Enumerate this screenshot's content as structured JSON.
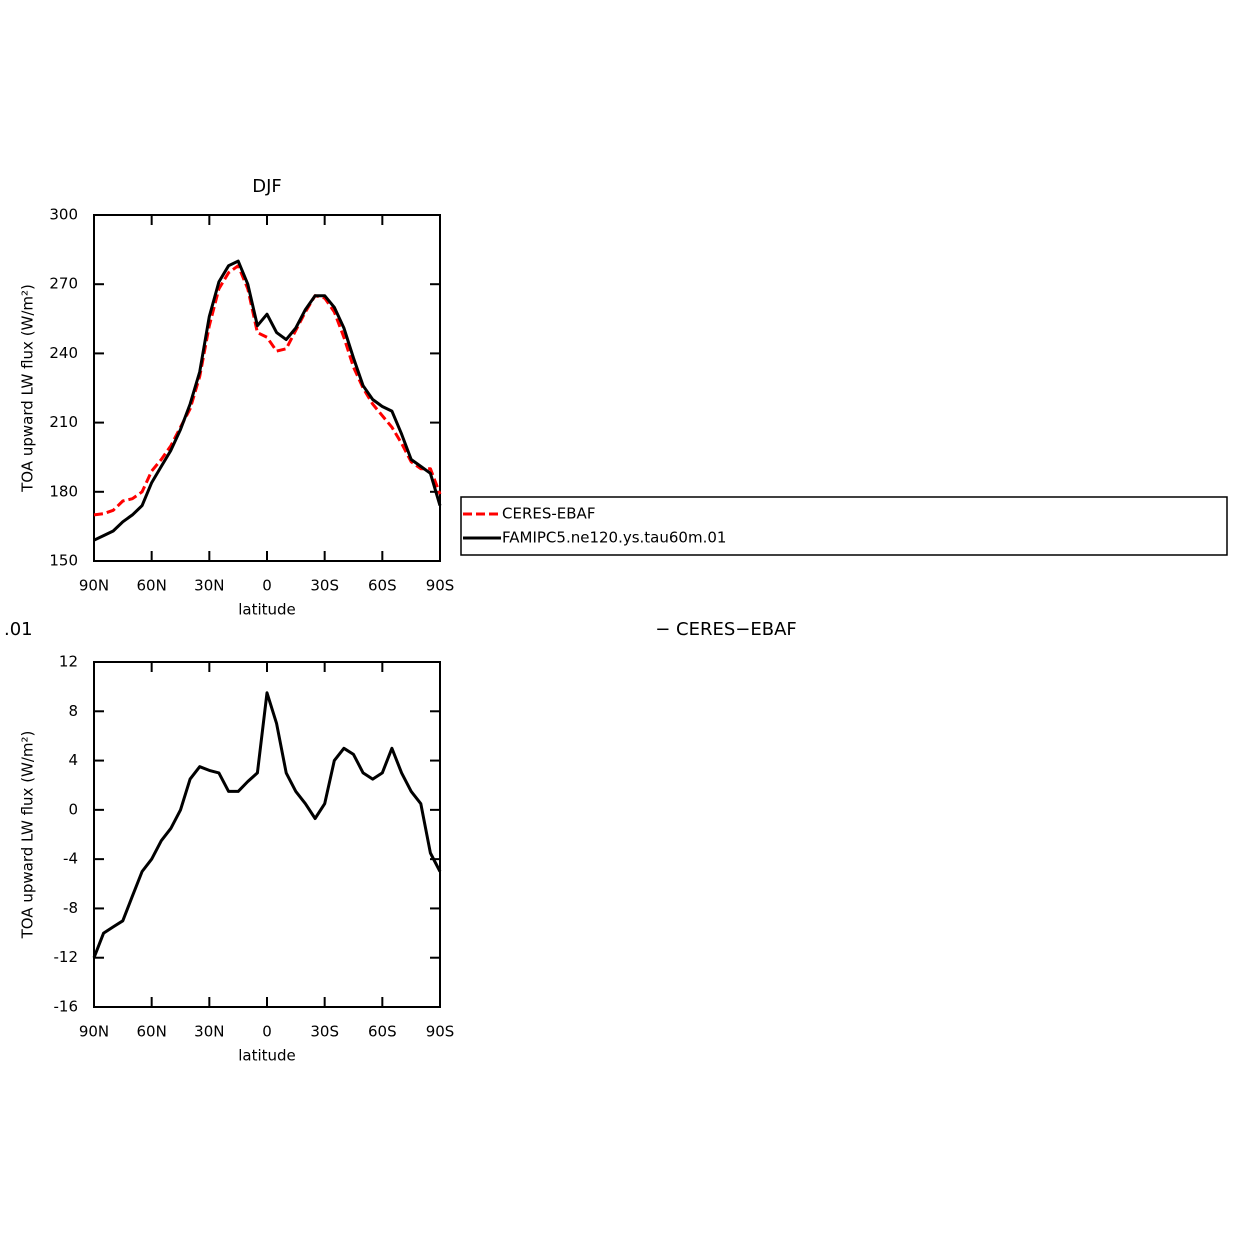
{
  "chart_data": [
    {
      "type": "line",
      "title": "DJF",
      "xlabel": "latitude",
      "ylabel": "TOA upward LW flux (W/m²)",
      "x": [
        90,
        85,
        80,
        75,
        70,
        65,
        60,
        55,
        50,
        45,
        40,
        35,
        30,
        25,
        20,
        15,
        10,
        5,
        0,
        -5,
        -10,
        -15,
        -20,
        -25,
        -30,
        -35,
        -40,
        -45,
        -50,
        -55,
        -60,
        -65,
        -70,
        -75,
        -80,
        -85,
        -90
      ],
      "series": [
        {
          "name": "CERES-EBAF",
          "color": "#ff0000",
          "dashed": true,
          "values": [
            170,
            170.5,
            172,
            176,
            177,
            180,
            189,
            194,
            200,
            208,
            216,
            230,
            252,
            268,
            275,
            278,
            268,
            249,
            247,
            241,
            242,
            250,
            258,
            265,
            264,
            258,
            247,
            234,
            225,
            218,
            213,
            208,
            201,
            193,
            190,
            190,
            179
          ]
        },
        {
          "name": "FAMIPC5.ne120.ys.tau60m.01",
          "color": "#000000",
          "dashed": false,
          "values": [
            159,
            161,
            163,
            167,
            170,
            174,
            184,
            191,
            198,
            207,
            218,
            232,
            256,
            271,
            278,
            280,
            270,
            252,
            257,
            249,
            246,
            251,
            259,
            265,
            265,
            260,
            251,
            238,
            226,
            220,
            217,
            215,
            205,
            194,
            191,
            188,
            174
          ]
        }
      ],
      "xlim": [
        90,
        -90
      ],
      "xticks": [
        {
          "value": 90,
          "label": "90N"
        },
        {
          "value": 60,
          "label": "60N"
        },
        {
          "value": 30,
          "label": "30N"
        },
        0,
        {
          "value": -30,
          "label": "30S"
        },
        {
          "value": -60,
          "label": "60S"
        },
        {
          "value": -90,
          "label": "90S"
        }
      ],
      "ylim": [
        150,
        300
      ],
      "yticks": [
        150,
        180,
        210,
        240,
        270,
        300
      ],
      "legend": "right"
    },
    {
      "type": "line",
      "title_left": ".01",
      "title_right": "− CERES−EBAF",
      "xlabel": "latitude",
      "ylabel": "TOA upward LW flux (W/m²)",
      "x": [
        90,
        85,
        80,
        75,
        70,
        65,
        60,
        55,
        50,
        45,
        40,
        35,
        30,
        25,
        20,
        15,
        10,
        5,
        0,
        -5,
        -10,
        -15,
        -20,
        -25,
        -30,
        -35,
        -40,
        -45,
        -50,
        -55,
        -60,
        -65,
        -70,
        -75,
        -80,
        -85,
        -90
      ],
      "series": [
        {
          "color": "#000000",
          "dashed": false,
          "values": [
            -12,
            -10,
            -9.5,
            -9,
            -7,
            -5,
            -4,
            -2.5,
            -1.5,
            0,
            2.5,
            3.5,
            3.2,
            3,
            1.5,
            1.5,
            2.3,
            3,
            9.5,
            7,
            3,
            1.5,
            0.5,
            -0.7,
            0.5,
            4,
            5,
            4.5,
            3,
            2.5,
            3,
            5,
            3,
            1.5,
            0.5,
            -3.5,
            -5
          ]
        }
      ],
      "xlim": [
        90,
        -90
      ],
      "xticks": [
        {
          "value": 90,
          "label": "90N"
        },
        {
          "value": 60,
          "label": "60N"
        },
        {
          "value": 30,
          "label": "30N"
        },
        0,
        {
          "value": -30,
          "label": "30S"
        },
        {
          "value": -60,
          "label": "60S"
        },
        {
          "value": -90,
          "label": "90S"
        }
      ],
      "ylim": [
        -16,
        12
      ],
      "yticks": [
        -16,
        -12,
        -8,
        -4,
        0,
        4,
        8,
        12
      ]
    }
  ]
}
